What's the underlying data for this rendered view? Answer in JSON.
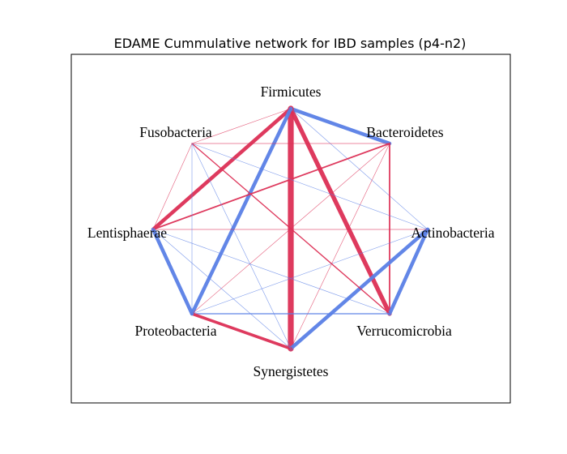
{
  "figure": {
    "title": "EDAME Cummulative network for IBD samples (p4-n2)"
  },
  "colors": {
    "positive": "#dc2f55",
    "negative": "#5a7fe6"
  },
  "chart_data": {
    "type": "network",
    "layout": "circular (heptagon)",
    "title": "EDAME Cummulative network for IBD samples (p4-n2)",
    "nodes": [
      "Firmicutes",
      "Bacteroidetes",
      "Actinobacteria",
      "Verrucomicrobia",
      "Synergistetes",
      "Proteobacteria",
      "Lentisphaerae",
      "Fusobacteria"
    ],
    "edges": [
      {
        "source": "Firmicutes",
        "target": "Bacteroidetes",
        "sign": "negative",
        "weight": 5
      },
      {
        "source": "Firmicutes",
        "target": "Synergistetes",
        "sign": "positive",
        "weight": 8
      },
      {
        "source": "Firmicutes",
        "target": "Verrucomicrobia",
        "sign": "positive",
        "weight": 6
      },
      {
        "source": "Firmicutes",
        "target": "Lentisphaerae",
        "sign": "positive",
        "weight": 5
      },
      {
        "source": "Firmicutes",
        "target": "Proteobacteria",
        "sign": "negative",
        "weight": 5
      },
      {
        "source": "Firmicutes",
        "target": "Fusobacteria",
        "sign": "positive",
        "weight": 0.7
      },
      {
        "source": "Firmicutes",
        "target": "Actinobacteria",
        "sign": "negative",
        "weight": 0.7
      },
      {
        "source": "Bacteroidetes",
        "target": "Verrucomicrobia",
        "sign": "positive",
        "weight": 2
      },
      {
        "source": "Bacteroidetes",
        "target": "Lentisphaerae",
        "sign": "positive",
        "weight": 2
      },
      {
        "source": "Bacteroidetes",
        "target": "Fusobacteria",
        "sign": "positive",
        "weight": 0.7
      },
      {
        "source": "Bacteroidetes",
        "target": "Synergistetes",
        "sign": "positive",
        "weight": 0.7
      },
      {
        "source": "Bacteroidetes",
        "target": "Proteobacteria",
        "sign": "positive",
        "weight": 0.7
      },
      {
        "source": "Actinobacteria",
        "target": "Synergistetes",
        "sign": "negative",
        "weight": 5
      },
      {
        "source": "Actinobacteria",
        "target": "Verrucomicrobia",
        "sign": "negative",
        "weight": 5
      },
      {
        "source": "Actinobacteria",
        "target": "Lentisphaerae",
        "sign": "positive",
        "weight": 0.7
      },
      {
        "source": "Actinobacteria",
        "target": "Fusobacteria",
        "sign": "negative",
        "weight": 0.7
      },
      {
        "source": "Actinobacteria",
        "target": "Proteobacteria",
        "sign": "negative",
        "weight": 0.7
      },
      {
        "source": "Verrucomicrobia",
        "target": "Fusobacteria",
        "sign": "positive",
        "weight": 1.5
      },
      {
        "source": "Verrucomicrobia",
        "target": "Proteobacteria",
        "sign": "negative",
        "weight": 1.5
      },
      {
        "source": "Verrucomicrobia",
        "target": "Lentisphaerae",
        "sign": "negative",
        "weight": 0.7
      },
      {
        "source": "Synergistetes",
        "target": "Proteobacteria",
        "sign": "positive",
        "weight": 4
      },
      {
        "source": "Synergistetes",
        "target": "Lentisphaerae",
        "sign": "negative",
        "weight": 0.7
      },
      {
        "source": "Synergistetes",
        "target": "Fusobacteria",
        "sign": "negative",
        "weight": 0.7
      },
      {
        "source": "Proteobacteria",
        "target": "Lentisphaerae",
        "sign": "negative",
        "weight": 5
      },
      {
        "source": "Proteobacteria",
        "target": "Fusobacteria",
        "sign": "negative",
        "weight": 0.7
      },
      {
        "source": "Lentisphaerae",
        "target": "Fusobacteria",
        "sign": "positive",
        "weight": 0.7
      }
    ]
  }
}
